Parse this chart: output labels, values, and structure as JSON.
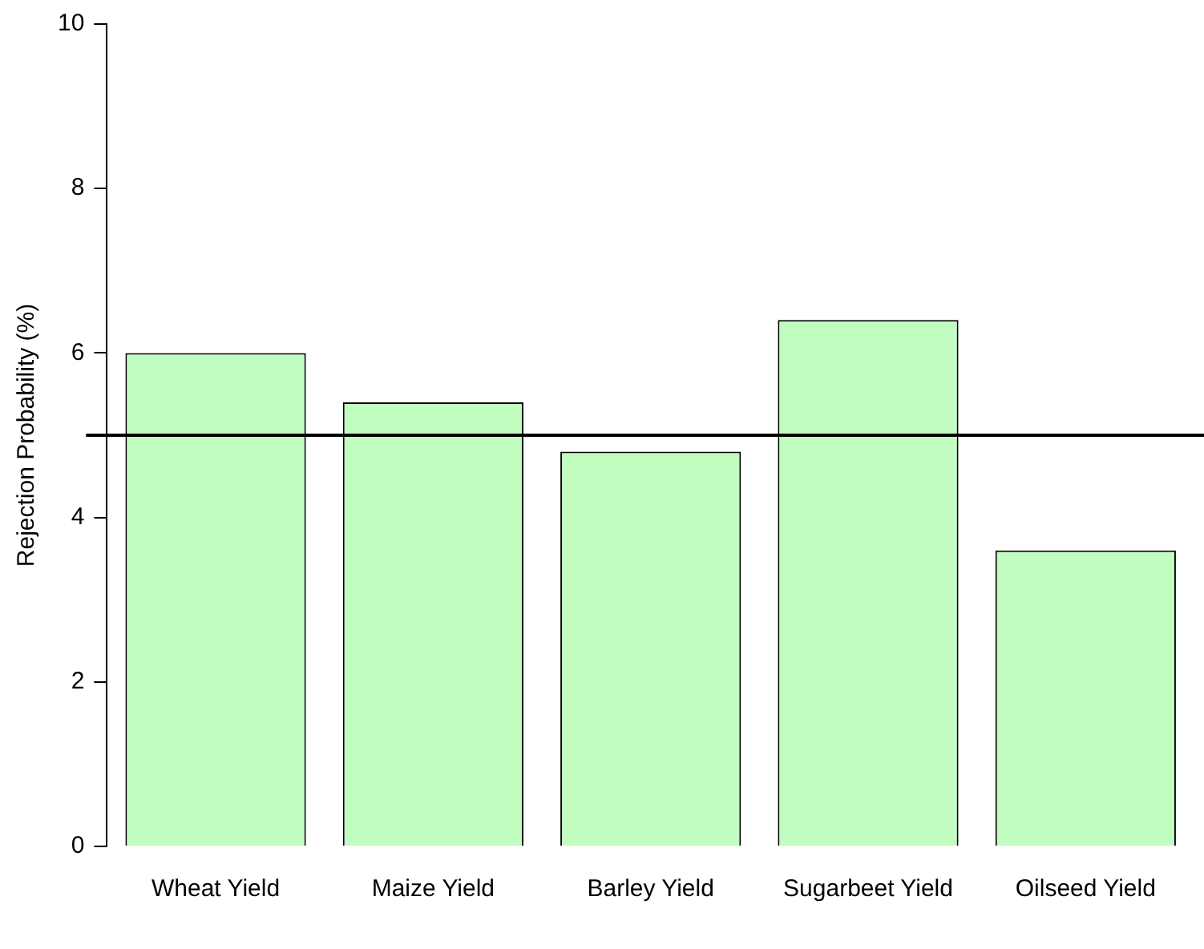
{
  "chart_data": {
    "type": "bar",
    "ylabel": "Rejection Probability (%)",
    "categories": [
      "Wheat Yield",
      "Maize Yield",
      "Barley Yield",
      "Sugarbeet Yield",
      "Oilseed Yield"
    ],
    "values": [
      6.0,
      5.4,
      4.8,
      6.4,
      3.6
    ],
    "color": "#c1fcc1",
    "ylim": [
      0,
      10
    ],
    "yticks": [
      0,
      2,
      4,
      6,
      8,
      10
    ],
    "grid": false,
    "legend": false,
    "ref_lines": [
      {
        "axis": "y",
        "value": 5,
        "color": "#000000"
      }
    ]
  }
}
